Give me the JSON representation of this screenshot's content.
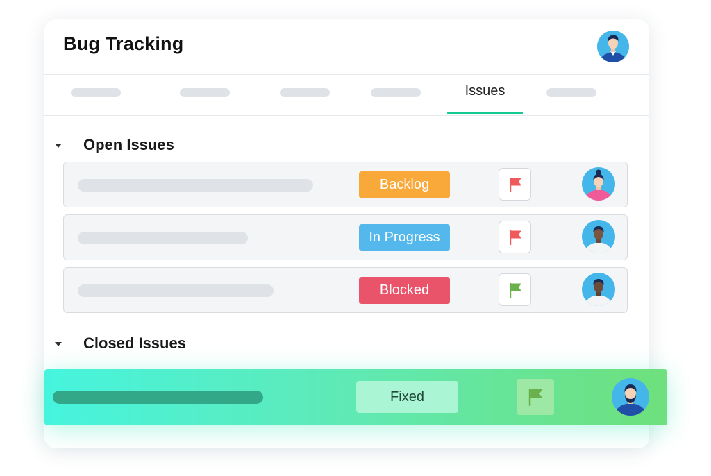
{
  "header": {
    "title": "Bug Tracking"
  },
  "tabs": {
    "active_label": "Issues"
  },
  "sections": {
    "open": {
      "label": "Open Issues"
    },
    "closed": {
      "label": "Closed Issues"
    }
  },
  "open_issues": [
    {
      "status": "Backlog",
      "status_color": "#f9a93a",
      "flag_color": "#f05a5a"
    },
    {
      "status": "In Progress",
      "status_color": "#55b8ec",
      "flag_color": "#f05a5a"
    },
    {
      "status": "Blocked",
      "status_color": "#e9546b",
      "flag_color": "#6ab04c"
    }
  ],
  "closed_issue": {
    "status": "Fixed",
    "flag_color": "#6ab04c"
  },
  "colors": {
    "accent": "#14c98f"
  }
}
